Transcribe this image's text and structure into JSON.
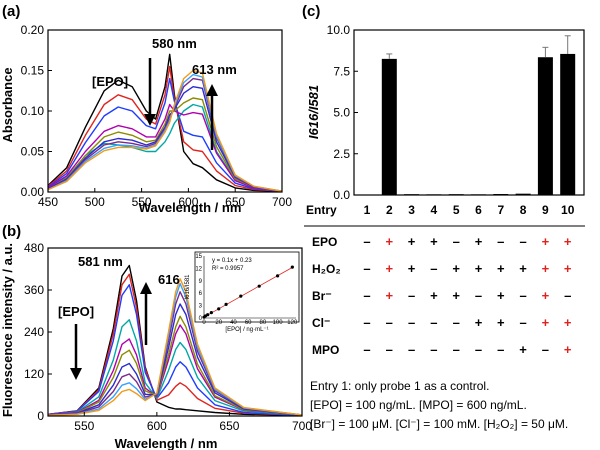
{
  "panel_a": {
    "label": "(a)",
    "peak1_label": "580 nm",
    "peak2_label": "613 nm",
    "epo_label": "[EPO]",
    "chart_data": {
      "type": "line",
      "xlabel": "Wavelength / nm",
      "ylabel": "Absorbance",
      "xlim": [
        450,
        700
      ],
      "ylim": [
        0,
        0.2
      ],
      "xticks": [
        "450",
        "500",
        "550",
        "600",
        "650",
        "700"
      ],
      "yticks": [
        "0.00",
        "0.05",
        "0.10",
        "0.15",
        "0.20"
      ],
      "series": [
        {
          "color": "#000000",
          "x": [
            450,
            470,
            490,
            510,
            525,
            540,
            555,
            565,
            575,
            580,
            585,
            595,
            605,
            615,
            630,
            650,
            670,
            700
          ],
          "y": [
            0.008,
            0.03,
            0.08,
            0.125,
            0.138,
            0.13,
            0.1,
            0.09,
            0.13,
            0.17,
            0.12,
            0.05,
            0.035,
            0.03,
            0.015,
            0.005,
            0.002,
            0.001
          ]
        },
        {
          "color": "#e0231e",
          "x": [
            450,
            470,
            490,
            510,
            525,
            540,
            555,
            565,
            575,
            580,
            585,
            595,
            605,
            615,
            630,
            650,
            670,
            700
          ],
          "y": [
            0.007,
            0.026,
            0.07,
            0.108,
            0.12,
            0.114,
            0.09,
            0.084,
            0.12,
            0.155,
            0.115,
            0.062,
            0.052,
            0.05,
            0.026,
            0.008,
            0.003,
            0.001
          ]
        },
        {
          "color": "#1f3cff",
          "x": [
            450,
            470,
            490,
            510,
            525,
            540,
            555,
            565,
            575,
            580,
            585,
            595,
            605,
            615,
            630,
            650,
            670,
            700
          ],
          "y": [
            0.006,
            0.023,
            0.061,
            0.094,
            0.105,
            0.1,
            0.082,
            0.078,
            0.11,
            0.14,
            0.112,
            0.075,
            0.07,
            0.068,
            0.036,
            0.011,
            0.004,
            0.001
          ]
        },
        {
          "color": "#00a7a7",
          "x": [
            450,
            470,
            490,
            510,
            525,
            540,
            555,
            565,
            575,
            580,
            585,
            595,
            605,
            615,
            630,
            650,
            670,
            700
          ],
          "y": [
            0.005,
            0.018,
            0.045,
            0.06,
            0.058,
            0.055,
            0.05,
            0.05,
            0.062,
            0.072,
            0.085,
            0.1,
            0.108,
            0.105,
            0.05,
            0.015,
            0.005,
            0.001
          ]
        },
        {
          "color": "#b000b0",
          "x": [
            450,
            470,
            490,
            510,
            525,
            540,
            555,
            565,
            575,
            580,
            585,
            595,
            605,
            615,
            630,
            650,
            670,
            700
          ],
          "y": [
            0.005,
            0.02,
            0.05,
            0.075,
            0.082,
            0.078,
            0.068,
            0.068,
            0.09,
            0.108,
            0.1,
            0.095,
            0.098,
            0.096,
            0.048,
            0.014,
            0.005,
            0.001
          ]
        },
        {
          "color": "#8b8b00",
          "x": [
            450,
            470,
            490,
            510,
            525,
            540,
            555,
            565,
            575,
            580,
            585,
            595,
            605,
            615,
            630,
            650,
            670,
            700
          ],
          "y": [
            0.004,
            0.017,
            0.045,
            0.068,
            0.074,
            0.07,
            0.062,
            0.064,
            0.084,
            0.1,
            0.1,
            0.11,
            0.116,
            0.114,
            0.056,
            0.016,
            0.006,
            0.001
          ]
        },
        {
          "color": "#2b2bd0",
          "x": [
            450,
            470,
            490,
            510,
            525,
            540,
            555,
            565,
            575,
            580,
            585,
            595,
            605,
            615,
            630,
            650,
            670,
            700
          ],
          "y": [
            0.004,
            0.016,
            0.042,
            0.062,
            0.066,
            0.064,
            0.058,
            0.062,
            0.08,
            0.095,
            0.102,
            0.122,
            0.13,
            0.128,
            0.062,
            0.018,
            0.006,
            0.001
          ]
        },
        {
          "color": "#7a2a8a",
          "x": [
            450,
            470,
            490,
            510,
            525,
            540,
            555,
            565,
            575,
            580,
            585,
            595,
            605,
            615,
            630,
            650,
            670,
            700
          ],
          "y": [
            0.003,
            0.015,
            0.04,
            0.058,
            0.062,
            0.06,
            0.056,
            0.06,
            0.078,
            0.09,
            0.104,
            0.13,
            0.14,
            0.138,
            0.067,
            0.019,
            0.006,
            0.001
          ]
        },
        {
          "color": "#3aa0ff",
          "x": [
            450,
            470,
            490,
            510,
            525,
            540,
            555,
            565,
            575,
            580,
            585,
            595,
            605,
            615,
            630,
            650,
            670,
            700
          ],
          "y": [
            0.003,
            0.014,
            0.038,
            0.054,
            0.058,
            0.057,
            0.054,
            0.058,
            0.076,
            0.088,
            0.106,
            0.135,
            0.145,
            0.142,
            0.069,
            0.02,
            0.007,
            0.001
          ]
        },
        {
          "color": "#f29a1a",
          "x": [
            450,
            470,
            490,
            510,
            525,
            540,
            555,
            565,
            575,
            580,
            585,
            595,
            605,
            615,
            630,
            650,
            670,
            700
          ],
          "y": [
            0.003,
            0.013,
            0.036,
            0.051,
            0.055,
            0.055,
            0.053,
            0.057,
            0.074,
            0.086,
            0.108,
            0.14,
            0.15,
            0.147,
            0.072,
            0.021,
            0.007,
            0.001
          ]
        }
      ]
    }
  },
  "panel_b": {
    "label": "(b)",
    "peak1_label": "581 nm",
    "peak2_label": "616",
    "epo_label": "[EPO]",
    "chart_data": {
      "type": "line",
      "xlabel": "Wavelength / nm",
      "ylabel": "Fluorescence intensity / a.u.",
      "xlim": [
        525,
        700
      ],
      "ylim": [
        0,
        480
      ],
      "xticks": [
        "550",
        "600",
        "650",
        "700"
      ],
      "yticks": [
        "0",
        "120",
        "240",
        "360",
        "480"
      ],
      "series": [
        {
          "color": "#000000",
          "x": [
            525,
            545,
            560,
            570,
            576,
            581,
            586,
            592,
            600,
            608,
            613,
            616,
            620,
            628,
            640,
            660,
            700
          ],
          "y": [
            5,
            15,
            80,
            250,
            400,
            430,
            330,
            140,
            40,
            25,
            20,
            20,
            18,
            15,
            10,
            5,
            2
          ]
        },
        {
          "color": "#e0231e",
          "x": [
            525,
            545,
            560,
            570,
            576,
            581,
            586,
            592,
            600,
            608,
            613,
            616,
            620,
            628,
            640,
            660,
            700
          ],
          "y": [
            5,
            14,
            75,
            235,
            375,
            405,
            310,
            135,
            45,
            60,
            85,
            95,
            85,
            50,
            22,
            8,
            2
          ]
        },
        {
          "color": "#1f3cff",
          "x": [
            525,
            545,
            560,
            570,
            576,
            581,
            586,
            592,
            600,
            608,
            613,
            616,
            620,
            628,
            640,
            660,
            700
          ],
          "y": [
            5,
            13,
            70,
            215,
            345,
            375,
            290,
            125,
            50,
            95,
            140,
            155,
            140,
            80,
            32,
            10,
            2
          ]
        },
        {
          "color": "#00a7a7",
          "x": [
            525,
            545,
            560,
            570,
            576,
            581,
            586,
            592,
            600,
            608,
            613,
            616,
            620,
            628,
            640,
            660,
            700
          ],
          "y": [
            4,
            11,
            55,
            160,
            255,
            275,
            215,
            95,
            50,
            130,
            190,
            210,
            190,
            110,
            44,
            14,
            3
          ]
        },
        {
          "color": "#b000b0",
          "x": [
            525,
            545,
            560,
            570,
            576,
            581,
            586,
            592,
            600,
            608,
            613,
            616,
            620,
            628,
            640,
            660,
            700
          ],
          "y": [
            4,
            10,
            45,
            130,
            205,
            220,
            175,
            80,
            55,
            160,
            235,
            260,
            235,
            135,
            54,
            17,
            3
          ]
        },
        {
          "color": "#8b8b00",
          "x": [
            525,
            545,
            560,
            570,
            576,
            581,
            586,
            592,
            600,
            608,
            613,
            616,
            620,
            628,
            640,
            660,
            700
          ],
          "y": [
            3,
            9,
            40,
            110,
            175,
            188,
            150,
            72,
            58,
            175,
            255,
            285,
            255,
            148,
            58,
            18,
            3
          ]
        },
        {
          "color": "#2b2bd0",
          "x": [
            525,
            545,
            560,
            570,
            576,
            581,
            586,
            592,
            600,
            608,
            613,
            616,
            620,
            628,
            640,
            660,
            700
          ],
          "y": [
            3,
            8,
            32,
            88,
            140,
            150,
            120,
            62,
            60,
            195,
            290,
            320,
            290,
            168,
            66,
            20,
            3
          ]
        },
        {
          "color": "#7a2a8a",
          "x": [
            525,
            545,
            560,
            570,
            576,
            581,
            586,
            592,
            600,
            608,
            613,
            616,
            620,
            628,
            640,
            660,
            700
          ],
          "y": [
            3,
            7,
            26,
            70,
            112,
            120,
            98,
            54,
            62,
            215,
            320,
            355,
            320,
            185,
            72,
            22,
            3
          ]
        },
        {
          "color": "#3aa0ff",
          "x": [
            525,
            545,
            560,
            570,
            576,
            581,
            586,
            592,
            600,
            608,
            613,
            616,
            620,
            628,
            640,
            660,
            700
          ],
          "y": [
            2,
            6,
            20,
            55,
            88,
            95,
            78,
            48,
            64,
            230,
            340,
            378,
            340,
            196,
            76,
            23,
            3
          ]
        },
        {
          "color": "#f29a1a",
          "x": [
            525,
            545,
            560,
            570,
            576,
            581,
            586,
            592,
            600,
            608,
            613,
            616,
            620,
            628,
            640,
            660,
            700
          ],
          "y": [
            2,
            5,
            16,
            44,
            70,
            76,
            64,
            44,
            66,
            240,
            355,
            392,
            355,
            205,
            80,
            24,
            3
          ]
        }
      ]
    },
    "inset": {
      "equation": "y = 0.1x + 0.23",
      "r2": "R² = 0.9957",
      "xlabel": "[EPO] / ng·mL⁻¹",
      "ylabel": "I616/I581",
      "chart_data": {
        "type": "scatter",
        "xlim": [
          0,
          125
        ],
        "ylim": [
          0,
          15
        ],
        "xticks": [
          "0",
          "20",
          "40",
          "60",
          "80",
          "100",
          "120"
        ],
        "yticks": [
          "0",
          "3",
          "6",
          "9",
          "12",
          "15"
        ],
        "x": [
          0,
          2,
          5,
          10,
          20,
          30,
          50,
          75,
          100,
          120
        ],
        "y": [
          0.2,
          0.5,
          0.8,
          1.3,
          2.2,
          3.3,
          5.3,
          7.7,
          10.2,
          12.3
        ]
      }
    }
  },
  "panel_c": {
    "label": "(c)",
    "chart_data": {
      "type": "bar",
      "categories": [
        "1",
        "2",
        "3",
        "4",
        "5",
        "6",
        "7",
        "8",
        "9",
        "10"
      ],
      "values": [
        0.02,
        8.25,
        0.05,
        0.04,
        0.05,
        0.04,
        0.06,
        0.08,
        8.35,
        8.55
      ],
      "errors": [
        0.01,
        0.3,
        0.02,
        0.02,
        0.02,
        0.02,
        0.02,
        0.03,
        0.6,
        1.1
      ],
      "ylabel": "I616/I581",
      "ylim": [
        0,
        10
      ],
      "yticks": [
        "0.0",
        "2.5",
        "5.0",
        "7.5",
        "10.0"
      ]
    },
    "table": {
      "entry_label": "Entry",
      "rows": [
        {
          "label": "EPO",
          "marks": [
            "–",
            "+",
            "+",
            "+",
            "–",
            "+",
            "–",
            "–",
            "+",
            "+"
          ]
        },
        {
          "label": "H₂O₂",
          "marks": [
            "–",
            "+",
            "+",
            "–",
            "+",
            "+",
            "+",
            "+",
            "+",
            "+"
          ]
        },
        {
          "label": "Br⁻",
          "marks": [
            "–",
            "+",
            "–",
            "+",
            "+",
            "–",
            "+",
            "–",
            "+",
            "–"
          ]
        },
        {
          "label": "Cl⁻",
          "marks": [
            "–",
            "–",
            "–",
            "–",
            "–",
            "+",
            "+",
            "–",
            "+",
            "+"
          ]
        },
        {
          "label": "MPO",
          "marks": [
            "–",
            "–",
            "–",
            "–",
            "–",
            "–",
            "–",
            "+",
            "–",
            "+"
          ]
        }
      ],
      "red_marks": [
        1,
        8,
        9
      ]
    },
    "notes": [
      "Entry 1: only probe 1 as a control.",
      "[EPO] = 100 ng/mL. [MPO] = 600 ng/mL.",
      "[Br⁻] = 100 μM. [Cl⁻] = 100 mM. [H₂O₂] = 50 μM."
    ]
  }
}
